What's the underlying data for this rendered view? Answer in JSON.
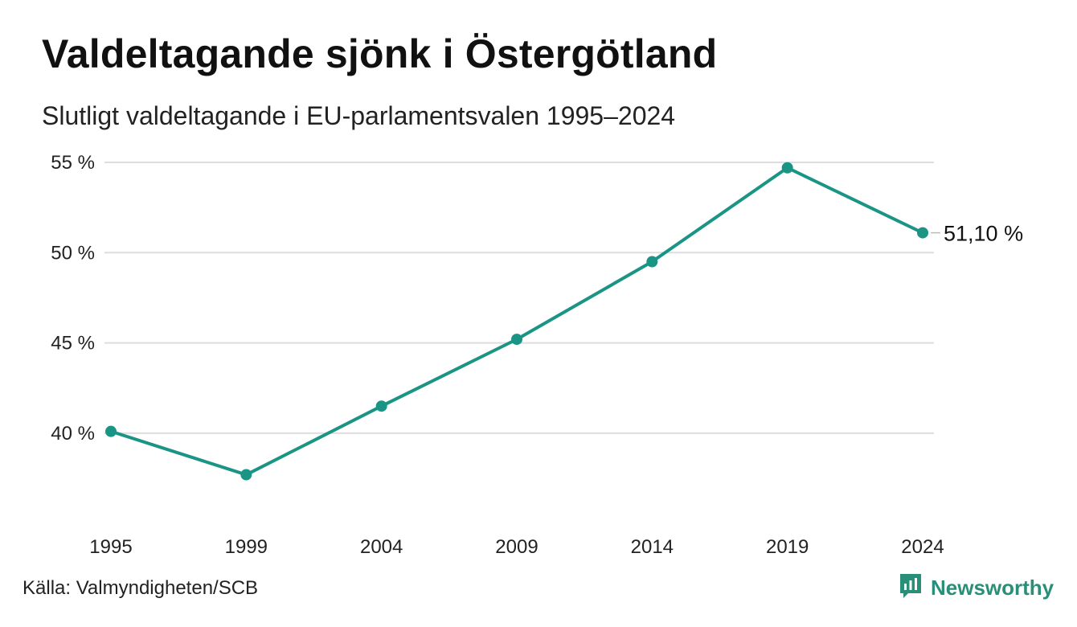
{
  "header": {
    "title": "Valdeltagande sjönk i Östergötland",
    "subtitle": "Slutligt valdeltagande i EU-parlamentsvalen 1995–2024"
  },
  "footer": {
    "source": "Källa: Valmyndigheten/SCB",
    "brand": "Newsworthy"
  },
  "chart_data": {
    "type": "line",
    "title": "Valdeltagande sjönk i Östergötland",
    "subtitle": "Slutligt valdeltagande i EU-parlamentsvalen 1995–2024",
    "xlabel": "",
    "ylabel": "",
    "categories": [
      "1995",
      "1999",
      "2004",
      "2009",
      "2014",
      "2019",
      "2024"
    ],
    "series": [
      {
        "values": [
          40.1,
          37.7,
          41.5,
          45.2,
          49.5,
          54.7,
          51.1
        ]
      }
    ],
    "ylim": [
      36.3,
      55
    ],
    "yticks": [
      40,
      45,
      50,
      55
    ],
    "ytick_labels": [
      "40 %",
      "45 %",
      "50 %",
      "55 %"
    ],
    "grid": true,
    "color": "#1a9585",
    "gridColor": "#dddddd",
    "end_label": "51,10 %"
  }
}
